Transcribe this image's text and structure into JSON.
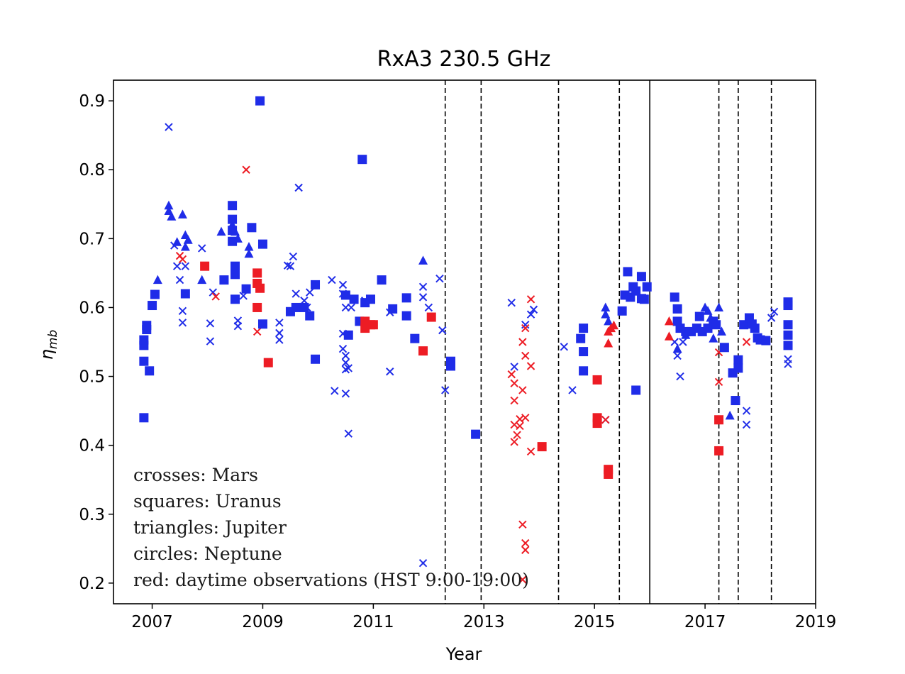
{
  "chart_data": {
    "type": "scatter",
    "title": "RxA3 230.5 GHz",
    "xlabel": "Year",
    "ylabel": "η_mb",
    "xlim": [
      2006.3,
      2019.0
    ],
    "ylim": [
      0.17,
      0.93
    ],
    "xticks": [
      2007,
      2009,
      2011,
      2013,
      2015,
      2017,
      2019
    ],
    "yticks": [
      0.2,
      0.3,
      0.4,
      0.5,
      0.6,
      0.7,
      0.8,
      0.9
    ],
    "dashed_vlines": [
      2012.3,
      2012.95,
      2014.35,
      2015.45,
      2017.25,
      2017.6,
      2018.2
    ],
    "solid_vlines": [
      2016.0
    ],
    "colors": {
      "night": "#1f2ce8",
      "day": "#ed1c24"
    },
    "annotation": [
      "crosses: Mars",
      "squares: Uranus",
      "triangles: Jupiter",
      "circles: Neptune",
      "red: daytime observations (HST 9:00-19:00)"
    ],
    "series": [
      {
        "marker": "x",
        "color": "night",
        "points": [
          [
            2007.3,
            0.862
          ],
          [
            2007.4,
            0.69
          ],
          [
            2007.45,
            0.66
          ],
          [
            2007.5,
            0.64
          ],
          [
            2007.55,
            0.595
          ],
          [
            2007.55,
            0.578
          ],
          [
            2007.6,
            0.66
          ],
          [
            2007.9,
            0.686
          ],
          [
            2008.05,
            0.577
          ],
          [
            2008.05,
            0.551
          ],
          [
            2008.1,
            0.622
          ],
          [
            2008.55,
            0.581
          ],
          [
            2008.55,
            0.573
          ],
          [
            2008.65,
            0.617
          ],
          [
            2009.3,
            0.578
          ],
          [
            2009.3,
            0.563
          ],
          [
            2009.3,
            0.553
          ],
          [
            2009.45,
            0.661
          ],
          [
            2009.5,
            0.66
          ],
          [
            2009.55,
            0.674
          ],
          [
            2009.6,
            0.62
          ],
          [
            2009.65,
            0.774
          ],
          [
            2009.75,
            0.61
          ],
          [
            2009.8,
            0.6
          ],
          [
            2009.85,
            0.622
          ],
          [
            2010.25,
            0.64
          ],
          [
            2010.3,
            0.479
          ],
          [
            2010.45,
            0.633
          ],
          [
            2010.45,
            0.62
          ],
          [
            2010.5,
            0.6
          ],
          [
            2010.45,
            0.562
          ],
          [
            2010.45,
            0.54
          ],
          [
            2010.5,
            0.53
          ],
          [
            2010.5,
            0.52
          ],
          [
            2010.5,
            0.51
          ],
          [
            2010.5,
            0.475
          ],
          [
            2010.55,
            0.512
          ],
          [
            2010.55,
            0.417
          ],
          [
            2010.6,
            0.6
          ],
          [
            2010.85,
            0.61
          ],
          [
            2011.3,
            0.507
          ],
          [
            2011.3,
            0.593
          ],
          [
            2011.9,
            0.229
          ],
          [
            2011.9,
            0.615
          ],
          [
            2011.9,
            0.63
          ],
          [
            2012.0,
            0.6
          ],
          [
            2012.2,
            0.642
          ],
          [
            2012.25,
            0.567
          ],
          [
            2012.3,
            0.48
          ],
          [
            2013.5,
            0.607
          ],
          [
            2013.55,
            0.514
          ],
          [
            2013.75,
            0.575
          ],
          [
            2013.85,
            0.59
          ],
          [
            2013.9,
            0.597
          ],
          [
            2014.45,
            0.543
          ],
          [
            2014.6,
            0.48
          ],
          [
            2015.2,
            0.437
          ],
          [
            2016.45,
            0.55
          ],
          [
            2016.5,
            0.53
          ],
          [
            2016.55,
            0.5
          ],
          [
            2016.6,
            0.55
          ],
          [
            2017.75,
            0.45
          ],
          [
            2017.75,
            0.43
          ],
          [
            2018.2,
            0.585
          ],
          [
            2018.25,
            0.594
          ],
          [
            2018.5,
            0.525
          ],
          [
            2018.5,
            0.518
          ]
        ]
      },
      {
        "marker": "x",
        "color": "day",
        "points": [
          [
            2007.5,
            0.675
          ],
          [
            2007.55,
            0.67
          ],
          [
            2008.15,
            0.616
          ],
          [
            2008.7,
            0.8
          ],
          [
            2008.9,
            0.565
          ],
          [
            2013.5,
            0.503
          ],
          [
            2013.55,
            0.49
          ],
          [
            2013.55,
            0.465
          ],
          [
            2013.55,
            0.43
          ],
          [
            2013.55,
            0.405
          ],
          [
            2013.6,
            0.415
          ],
          [
            2013.65,
            0.428
          ],
          [
            2013.65,
            0.438
          ],
          [
            2013.7,
            0.55
          ],
          [
            2013.7,
            0.48
          ],
          [
            2013.7,
            0.285
          ],
          [
            2013.75,
            0.57
          ],
          [
            2013.75,
            0.53
          ],
          [
            2013.75,
            0.258
          ],
          [
            2013.75,
            0.248
          ],
          [
            2013.7,
            0.205
          ],
          [
            2013.75,
            0.44
          ],
          [
            2013.85,
            0.515
          ],
          [
            2013.85,
            0.391
          ],
          [
            2013.85,
            0.612
          ],
          [
            2015.2,
            0.437
          ],
          [
            2017.25,
            0.535
          ],
          [
            2017.25,
            0.492
          ],
          [
            2017.75,
            0.55
          ]
        ]
      },
      {
        "marker": "square",
        "color": "night",
        "points": [
          [
            2006.85,
            0.44
          ],
          [
            2006.85,
            0.522
          ],
          [
            2006.85,
            0.545
          ],
          [
            2006.85,
            0.553
          ],
          [
            2006.9,
            0.568
          ],
          [
            2006.9,
            0.574
          ],
          [
            2006.95,
            0.508
          ],
          [
            2007.0,
            0.603
          ],
          [
            2007.05,
            0.619
          ],
          [
            2007.6,
            0.62
          ],
          [
            2008.3,
            0.64
          ],
          [
            2008.45,
            0.748
          ],
          [
            2008.45,
            0.728
          ],
          [
            2008.45,
            0.712
          ],
          [
            2008.45,
            0.696
          ],
          [
            2008.5,
            0.66
          ],
          [
            2008.5,
            0.648
          ],
          [
            2008.5,
            0.612
          ],
          [
            2008.7,
            0.627
          ],
          [
            2008.8,
            0.716
          ],
          [
            2008.95,
            0.9
          ],
          [
            2009.0,
            0.692
          ],
          [
            2009.0,
            0.576
          ],
          [
            2009.5,
            0.594
          ],
          [
            2009.6,
            0.6
          ],
          [
            2009.75,
            0.6
          ],
          [
            2009.85,
            0.588
          ],
          [
            2009.95,
            0.633
          ],
          [
            2009.95,
            0.525
          ],
          [
            2010.5,
            0.618
          ],
          [
            2010.55,
            0.56
          ],
          [
            2010.65,
            0.612
          ],
          [
            2010.75,
            0.58
          ],
          [
            2010.8,
            0.815
          ],
          [
            2010.85,
            0.607
          ],
          [
            2010.95,
            0.612
          ],
          [
            2011.15,
            0.64
          ],
          [
            2011.35,
            0.598
          ],
          [
            2011.6,
            0.614
          ],
          [
            2011.6,
            0.588
          ],
          [
            2011.75,
            0.555
          ],
          [
            2012.4,
            0.522
          ],
          [
            2012.4,
            0.515
          ],
          [
            2012.85,
            0.416
          ],
          [
            2014.75,
            0.555
          ],
          [
            2014.8,
            0.57
          ],
          [
            2014.8,
            0.536
          ],
          [
            2014.8,
            0.508
          ],
          [
            2015.5,
            0.595
          ],
          [
            2015.55,
            0.618
          ],
          [
            2015.6,
            0.652
          ],
          [
            2015.65,
            0.615
          ],
          [
            2015.7,
            0.63
          ],
          [
            2015.75,
            0.624
          ],
          [
            2015.75,
            0.48
          ],
          [
            2015.85,
            0.645
          ],
          [
            2015.85,
            0.613
          ],
          [
            2015.9,
            0.612
          ],
          [
            2015.95,
            0.63
          ],
          [
            2016.45,
            0.615
          ],
          [
            2016.5,
            0.598
          ],
          [
            2016.5,
            0.58
          ],
          [
            2016.55,
            0.57
          ],
          [
            2016.65,
            0.565
          ],
          [
            2016.75,
            0.565
          ],
          [
            2016.85,
            0.57
          ],
          [
            2016.9,
            0.587
          ],
          [
            2016.95,
            0.565
          ],
          [
            2017.05,
            0.57
          ],
          [
            2017.15,
            0.58
          ],
          [
            2017.2,
            0.575
          ],
          [
            2017.35,
            0.542
          ],
          [
            2017.5,
            0.505
          ],
          [
            2017.55,
            0.465
          ],
          [
            2017.6,
            0.524
          ],
          [
            2017.6,
            0.512
          ],
          [
            2017.7,
            0.575
          ],
          [
            2017.8,
            0.585
          ],
          [
            2017.85,
            0.576
          ],
          [
            2017.9,
            0.57
          ],
          [
            2017.95,
            0.556
          ],
          [
            2018.0,
            0.553
          ],
          [
            2018.1,
            0.552
          ],
          [
            2018.5,
            0.608
          ],
          [
            2018.5,
            0.603
          ],
          [
            2018.5,
            0.575
          ],
          [
            2018.5,
            0.56
          ],
          [
            2018.5,
            0.545
          ]
        ]
      },
      {
        "marker": "square",
        "color": "day",
        "points": [
          [
            2007.95,
            0.66
          ],
          [
            2008.9,
            0.6
          ],
          [
            2008.9,
            0.635
          ],
          [
            2008.9,
            0.65
          ],
          [
            2008.95,
            0.628
          ],
          [
            2009.1,
            0.52
          ],
          [
            2010.85,
            0.58
          ],
          [
            2010.85,
            0.57
          ],
          [
            2010.95,
            0.575
          ],
          [
            2011.0,
            0.575
          ],
          [
            2011.9,
            0.537
          ],
          [
            2012.05,
            0.586
          ],
          [
            2014.05,
            0.398
          ],
          [
            2015.05,
            0.495
          ],
          [
            2015.05,
            0.44
          ],
          [
            2015.05,
            0.432
          ],
          [
            2015.25,
            0.365
          ],
          [
            2015.25,
            0.358
          ],
          [
            2017.25,
            0.437
          ],
          [
            2017.25,
            0.392
          ]
        ]
      },
      {
        "marker": "triangle",
        "color": "night",
        "points": [
          [
            2007.1,
            0.64
          ],
          [
            2007.3,
            0.748
          ],
          [
            2007.3,
            0.74
          ],
          [
            2007.35,
            0.732
          ],
          [
            2007.45,
            0.695
          ],
          [
            2007.55,
            0.735
          ],
          [
            2007.6,
            0.705
          ],
          [
            2007.65,
            0.698
          ],
          [
            2007.6,
            0.688
          ],
          [
            2007.9,
            0.64
          ],
          [
            2008.25,
            0.71
          ],
          [
            2008.45,
            0.72
          ],
          [
            2008.5,
            0.71
          ],
          [
            2008.55,
            0.7
          ],
          [
            2008.75,
            0.688
          ],
          [
            2008.75,
            0.678
          ],
          [
            2011.9,
            0.668
          ],
          [
            2015.2,
            0.6
          ],
          [
            2015.2,
            0.59
          ],
          [
            2015.25,
            0.58
          ],
          [
            2016.5,
            0.54
          ],
          [
            2016.65,
            0.56
          ],
          [
            2017.0,
            0.6
          ],
          [
            2017.05,
            0.595
          ],
          [
            2017.1,
            0.585
          ],
          [
            2017.15,
            0.555
          ],
          [
            2017.25,
            0.6
          ],
          [
            2017.3,
            0.565
          ],
          [
            2017.45,
            0.443
          ]
        ]
      },
      {
        "marker": "triangle",
        "color": "day",
        "points": [
          [
            2015.25,
            0.565
          ],
          [
            2015.3,
            0.57
          ],
          [
            2015.35,
            0.574
          ],
          [
            2015.25,
            0.548
          ],
          [
            2016.35,
            0.58
          ],
          [
            2016.35,
            0.558
          ]
        ]
      }
    ]
  }
}
